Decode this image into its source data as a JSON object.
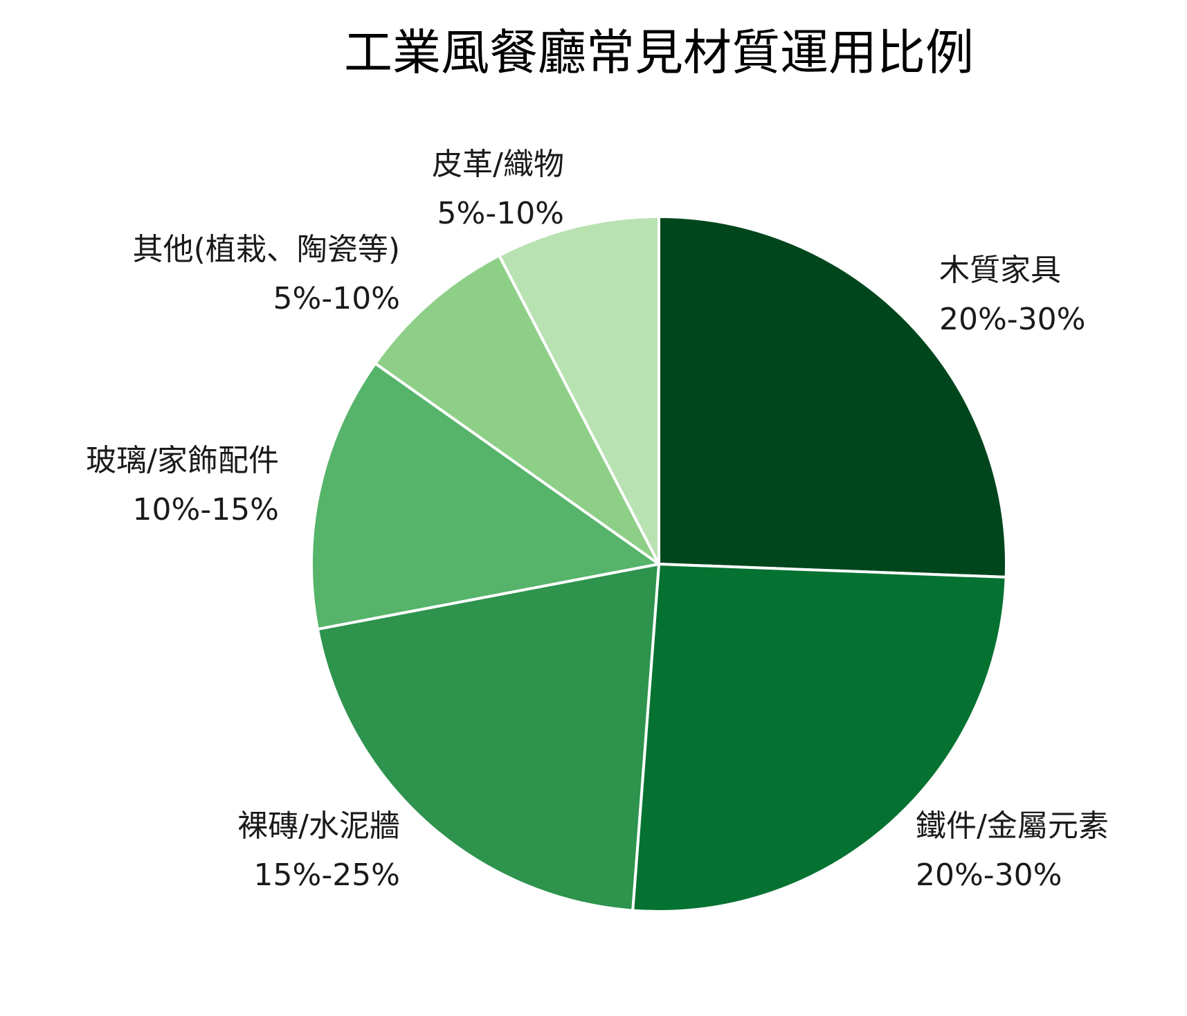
{
  "chart_data": {
    "type": "pie",
    "title": "工業風餐廳常見材質運用比例",
    "start": "12 o'clock, clockwise",
    "slices": [
      {
        "label": "木質家具",
        "range": "20%-30%",
        "value": 25.6,
        "color": "#00461d"
      },
      {
        "label": "鐵件/金屬元素",
        "range": "20%-30%",
        "value": 25.6,
        "color": "#067232"
      },
      {
        "label": "裸磚/水泥牆",
        "range": "15%-25%",
        "value": 20.8,
        "color": "#2d934d"
      },
      {
        "label": "玻璃/家飾配件",
        "range": "10%-15%",
        "value": 12.8,
        "color": "#55b46a"
      },
      {
        "label": "其他(植栽、陶瓷等)",
        "range": "5%-10%",
        "value": 7.6,
        "color": "#8ecf88"
      },
      {
        "label": "皮革/織物",
        "range": "5%-10%",
        "value": 7.6,
        "color": "#b8e2b1"
      }
    ],
    "slice_border_color": "#ffffff",
    "legend": "none (labels beside slices)"
  }
}
